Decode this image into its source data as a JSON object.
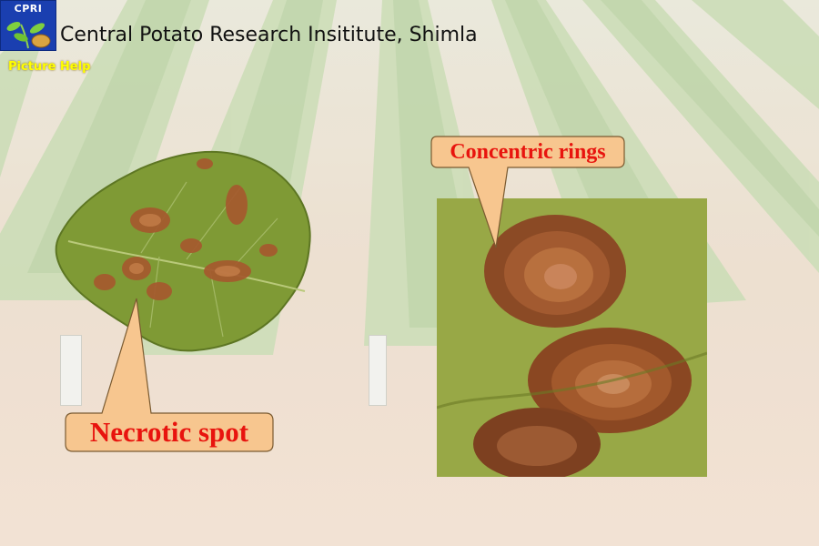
{
  "header": {
    "logo_text": "CPRI",
    "title": "Central Potato Research Insititute, Shimla"
  },
  "nav": {
    "picture_help": "Picture Help"
  },
  "callouts": {
    "concentric_rings": "Concentric rings",
    "necrotic_spot": "Necrotic spot"
  },
  "colors": {
    "callout_fill": "#f7c68f",
    "callout_text": "#e8140e",
    "help_link": "#ffff00",
    "logo_bg": "#1a3fb0"
  },
  "images": {
    "background": "potato-field-photo",
    "leaf": "diseased-potato-leaf",
    "crop": "leaf-closeup-concentric-rings"
  }
}
